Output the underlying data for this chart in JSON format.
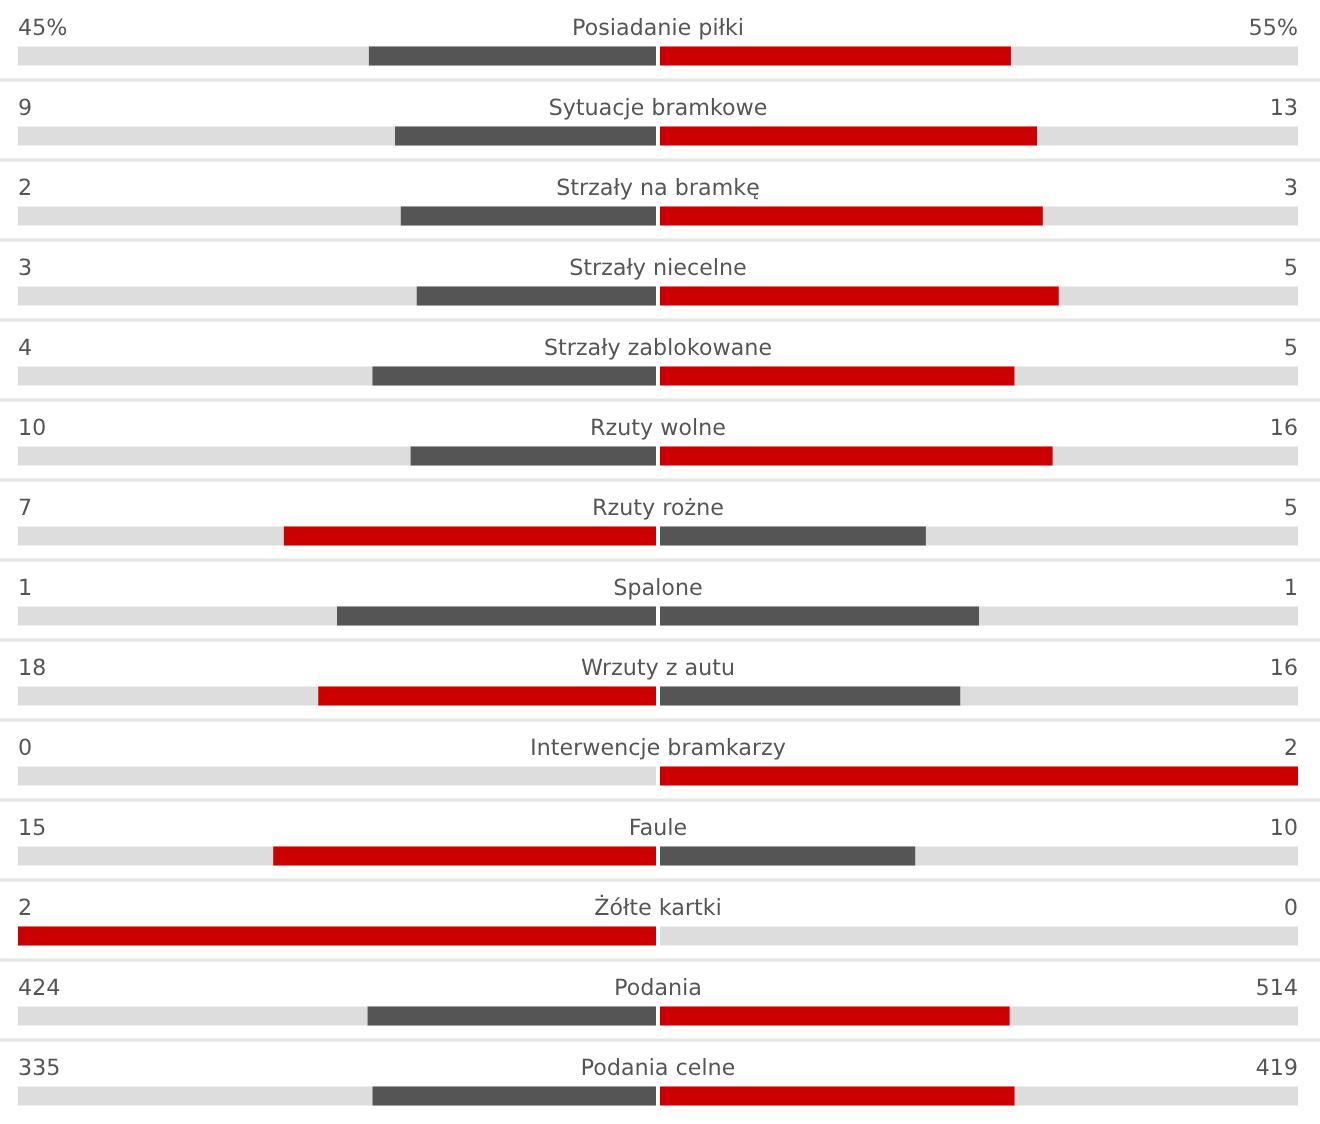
{
  "chart_data": {
    "type": "other",
    "categories": [
      "Posiadanie piłki",
      "Sytuacje bramkowe",
      "Strzały na bramkę",
      "Strzały niecelne",
      "Strzały zablokowane",
      "Rzuty wolne",
      "Rzuty rożne",
      "Spalone",
      "Wrzuty z autu",
      "Interwencje bramkarzy",
      "Faule",
      "Żółte kartki",
      "Podania",
      "Podania celne"
    ],
    "series": [
      {
        "values": [
          45,
          9,
          2,
          3,
          4,
          10,
          7,
          1,
          18,
          0,
          15,
          2,
          424,
          335
        ],
        "value_labels": [
          "45%",
          "9",
          "2",
          "3",
          "4",
          "10",
          "7",
          "1",
          "18",
          "0",
          "15",
          "2",
          "424",
          "335"
        ],
        "colors": [
          "#555555",
          "#555555",
          "#555555",
          "#555555",
          "#555555",
          "#555555",
          "#cc0000",
          "#555555",
          "#cc0000",
          "#555555",
          "#cc0000",
          "#cc0000",
          "#555555",
          "#555555"
        ]
      },
      {
        "values": [
          55,
          13,
          3,
          5,
          5,
          16,
          5,
          1,
          16,
          2,
          10,
          0,
          514,
          419
        ],
        "value_labels": [
          "55%",
          "13",
          "3",
          "5",
          "5",
          "16",
          "5",
          "1",
          "16",
          "2",
          "10",
          "0",
          "514",
          "419"
        ],
        "colors": [
          "#cc0000",
          "#cc0000",
          "#cc0000",
          "#cc0000",
          "#cc0000",
          "#cc0000",
          "#555555",
          "#555555",
          "#555555",
          "#cc0000",
          "#555555",
          "#555555",
          "#cc0000",
          "#cc0000"
        ]
      }
    ]
  }
}
